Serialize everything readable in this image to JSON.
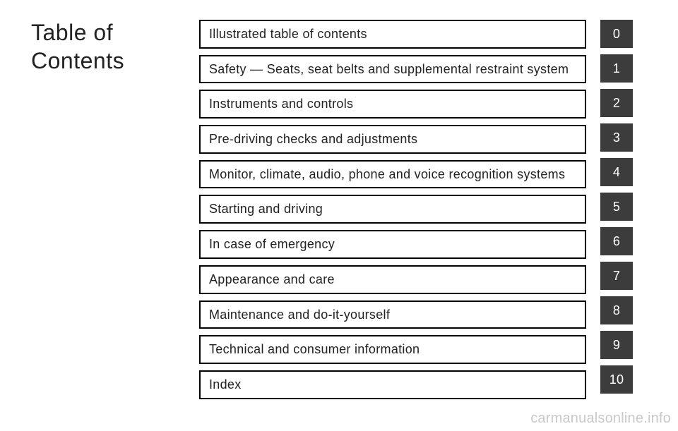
{
  "title_line1": "Table of",
  "title_line2": "Contents",
  "chapters": [
    {
      "label": "Illustrated table of contents",
      "tab": "0"
    },
    {
      "label": "Safety — Seats, seat belts and supplemental restraint system",
      "tab": "1"
    },
    {
      "label": "Instruments and controls",
      "tab": "2"
    },
    {
      "label": "Pre-driving checks and adjustments",
      "tab": "3"
    },
    {
      "label": "Monitor, climate, audio, phone and voice recognition systems",
      "tab": "4"
    },
    {
      "label": "Starting and driving",
      "tab": "5"
    },
    {
      "label": "In case of emergency",
      "tab": "6"
    },
    {
      "label": "Appearance and care",
      "tab": "7"
    },
    {
      "label": "Maintenance and do-it-yourself",
      "tab": "8"
    },
    {
      "label": "Technical and consumer information",
      "tab": "9"
    },
    {
      "label": "Index",
      "tab": "10"
    }
  ],
  "colors": {
    "page_bg": "#ffffff",
    "text": "#222223",
    "item_border": "#000000",
    "item_bg": "#ffffff",
    "tab_bg": "#3c3c3c",
    "tab_text": "#ffffff",
    "watermark": "#c9c9c9"
  },
  "watermark": "carmanualsonline.info"
}
